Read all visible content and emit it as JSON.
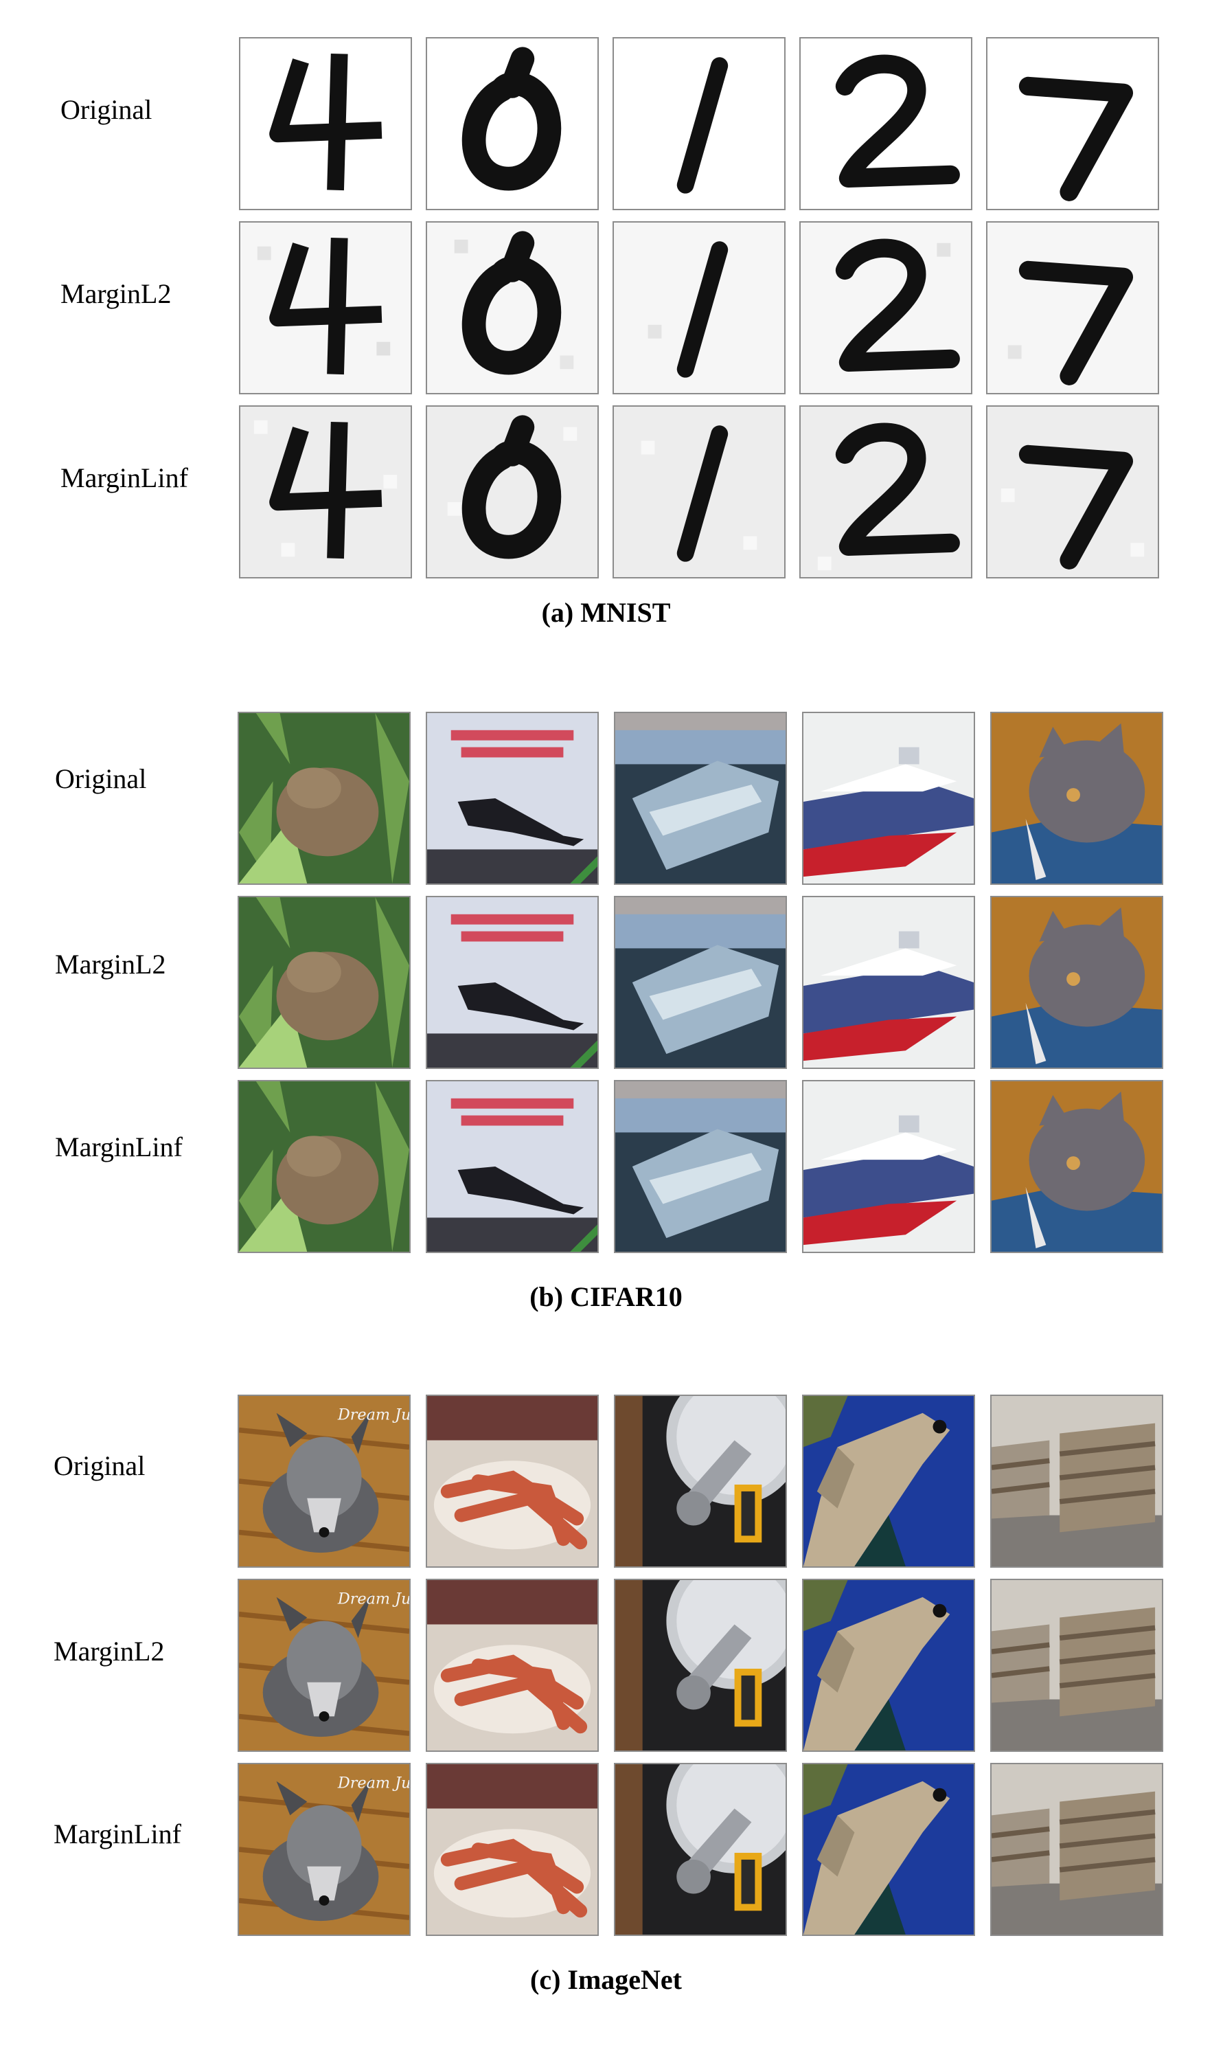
{
  "rows": [
    "Original",
    "MarginL2",
    "MarginLinf"
  ],
  "sections": [
    {
      "id": "mnist",
      "caption": "(a) MNIST",
      "type": "digits",
      "images": [
        "4",
        "0",
        "1",
        "2",
        "7"
      ]
    },
    {
      "id": "cifar",
      "caption": "(b) CIFAR10",
      "type": "photos",
      "images": [
        "frog",
        "airplane-poster",
        "ship",
        "cruise-ship",
        "cat"
      ]
    },
    {
      "id": "imagenet",
      "caption": "(c) ImageNet",
      "type": "photos",
      "images": [
        "schnauzer-dog",
        "king-crab",
        "hard-drive",
        "weimaraner-dog",
        "wooden-crates"
      ]
    }
  ],
  "poster_text": "Dream Jules Verne",
  "colors": {
    "frame": "#8c8c8c",
    "ink": "#111111",
    "frog_bg": "#3f6a35",
    "sky_blue": "#1c3b9c",
    "cat_bg": "#b4782a",
    "cat_blanket": "#2c5a8e",
    "wood": "#a56a2c"
  }
}
